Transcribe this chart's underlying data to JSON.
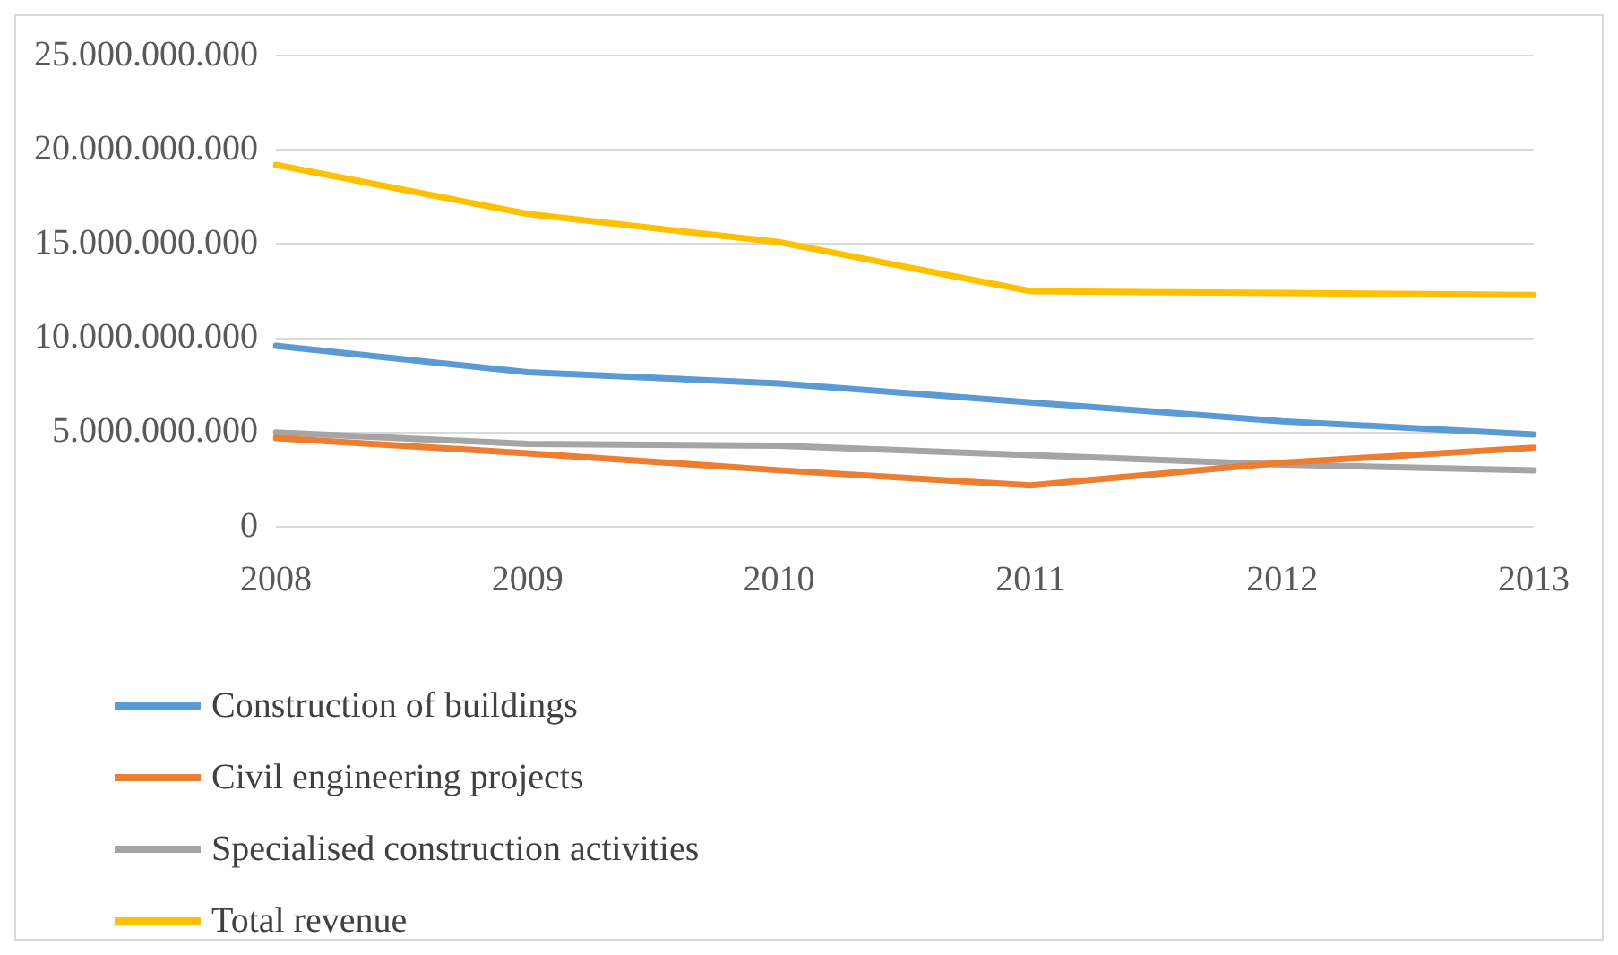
{
  "chart_data": {
    "type": "line",
    "categories": [
      "2008",
      "2009",
      "2010",
      "2011",
      "2012",
      "2013"
    ],
    "series": [
      {
        "name": "Construction of buildings",
        "color": "#5b9bd5",
        "values": [
          9600000000,
          8200000000,
          7600000000,
          6600000000,
          5600000000,
          4900000000
        ]
      },
      {
        "name": "Civil engineering projects",
        "color": "#ed7d31",
        "values": [
          4700000000,
          3900000000,
          3000000000,
          2200000000,
          3400000000,
          4200000000
        ]
      },
      {
        "name": "Specialised construction activities",
        "color": "#a5a5a5",
        "values": [
          5000000000,
          4400000000,
          4300000000,
          3800000000,
          3300000000,
          3000000000
        ]
      },
      {
        "name": "Total revenue",
        "color": "#ffc000",
        "values": [
          19200000000,
          16600000000,
          15100000000,
          12500000000,
          12400000000,
          12300000000
        ]
      }
    ],
    "ylim": [
      0,
      25000000000
    ],
    "yticks": [
      0,
      {
        "value": 5000000000,
        "label": "5.000.000.000"
      },
      {
        "value": 10000000000,
        "label": "10.000.000.000"
      },
      {
        "value": 15000000000,
        "label": "15.000.000.000"
      },
      {
        "value": 20000000000,
        "label": "20.000.000.000"
      },
      {
        "value": 25000000000,
        "label": "25.000.000.000"
      }
    ],
    "grid": "y",
    "legend": "bottom left",
    "marker": "none",
    "line_style": "solid"
  }
}
